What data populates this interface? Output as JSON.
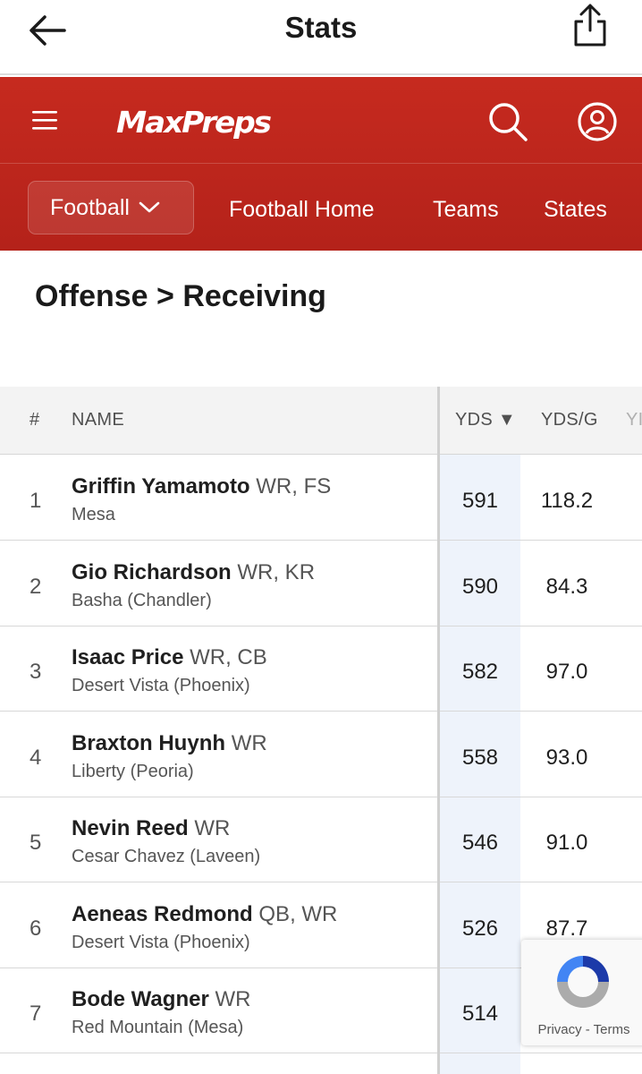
{
  "appbar": {
    "title": "Stats"
  },
  "header": {
    "brand": "MaxPreps",
    "sport_select": "Football",
    "nav": [
      "Football Home",
      "Teams",
      "States"
    ]
  },
  "section_title": "Offense > Receiving",
  "table": {
    "headers": {
      "rank": "#",
      "name": "NAME",
      "yds": "YDS ▼",
      "ydsg": "YDS/G",
      "next": "YI"
    },
    "rows": [
      {
        "rank": "1",
        "name": "Griffin Yamamoto",
        "pos": "WR, FS",
        "school": "Mesa",
        "yds": "591",
        "ydsg": "118.2"
      },
      {
        "rank": "2",
        "name": "Gio Richardson",
        "pos": "WR, KR",
        "school": "Basha (Chandler)",
        "yds": "590",
        "ydsg": "84.3"
      },
      {
        "rank": "3",
        "name": "Isaac Price",
        "pos": "WR, CB",
        "school": "Desert Vista (Phoenix)",
        "yds": "582",
        "ydsg": "97.0"
      },
      {
        "rank": "4",
        "name": "Braxton Huynh",
        "pos": "WR",
        "school": "Liberty (Peoria)",
        "yds": "558",
        "ydsg": "93.0"
      },
      {
        "rank": "5",
        "name": "Nevin Reed",
        "pos": "WR",
        "school": "Cesar Chavez (Laveen)",
        "yds": "546",
        "ydsg": "91.0"
      },
      {
        "rank": "6",
        "name": "Aeneas Redmond",
        "pos": "QB, WR",
        "school": "Desert Vista (Phoenix)",
        "yds": "526",
        "ydsg": "87.7"
      },
      {
        "rank": "7",
        "name": "Bode Wagner",
        "pos": "WR",
        "school": "Red Mountain (Mesa)",
        "yds": "514",
        "ydsg": ""
      }
    ]
  },
  "recaptcha": {
    "links": "Privacy - Terms"
  },
  "colors": {
    "brand_red": "#c62a1f",
    "yds_highlight": "#eef3fb"
  }
}
